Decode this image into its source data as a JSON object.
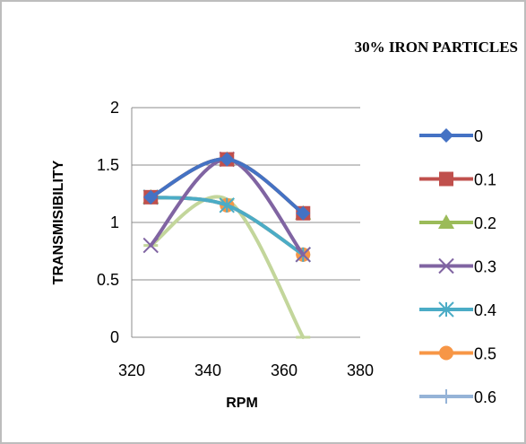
{
  "chart_data": {
    "type": "line",
    "title": "30% IRON PARTICLES",
    "xlabel": "RPM",
    "ylabel": "TRANSMISIBILITY",
    "xlim": [
      320,
      380
    ],
    "ylim": [
      0,
      2
    ],
    "x_ticks": [
      "320",
      "340",
      "360",
      "380"
    ],
    "y_ticks": [
      "0",
      "0.5",
      "1",
      "1.5",
      "2"
    ],
    "gridlines": "horizontal",
    "legend_position": "right",
    "x": [
      325,
      345,
      365
    ],
    "series": [
      {
        "name": "0",
        "values": [
          1.22,
          1.55,
          1.08
        ],
        "color": "#4472c4",
        "marker": "diamond"
      },
      {
        "name": "0.1",
        "values": [
          1.22,
          1.55,
          1.08
        ],
        "color": "#c0504d",
        "marker": "square"
      },
      {
        "name": "0.2",
        "values": [
          1.22,
          1.55,
          1.08
        ],
        "color": "#9bbb59",
        "marker": "triangle"
      },
      {
        "name": "0.3",
        "values": [
          0.8,
          1.55,
          0.72
        ],
        "color": "#8064a2",
        "marker": "x"
      },
      {
        "name": "0.4",
        "values": [
          1.22,
          1.15,
          0.72
        ],
        "color": "#4bacc6",
        "marker": "star"
      },
      {
        "name": "0.5",
        "values": [
          1.22,
          1.15,
          0.72
        ],
        "color": "#f79646",
        "marker": "circle"
      },
      {
        "name": "0.6",
        "values": [
          1.22,
          1.15,
          0.72
        ],
        "color": "#95b3d7",
        "marker": "plus"
      },
      {
        "name": "",
        "values": [
          0.8,
          1.2,
          0.0
        ],
        "color": "#c3d69b",
        "marker": "dash"
      }
    ]
  }
}
